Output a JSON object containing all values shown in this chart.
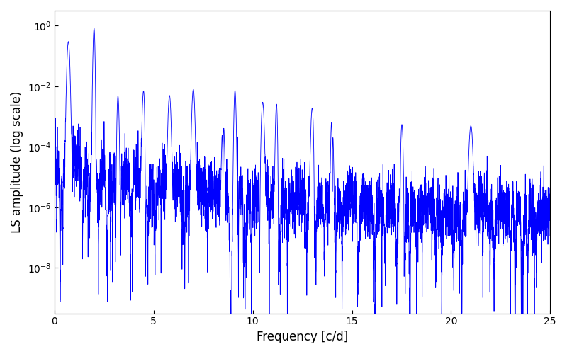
{
  "title": "",
  "xlabel": "Frequency [c/d]",
  "ylabel": "LS amplitude (log scale)",
  "xlim": [
    0,
    25
  ],
  "ylim_log": [
    -9.5,
    0.5
  ],
  "line_color": "#0000ff",
  "line_width": 0.6,
  "yscale": "log",
  "yticks": [
    1e-08,
    1e-06,
    0.0001,
    0.01,
    1.0
  ],
  "xticks": [
    0,
    5,
    10,
    15,
    20,
    25
  ],
  "num_points": 5000,
  "freq_max": 25.0,
  "main_peak_freq": 2.0,
  "main_peak_amp": 1.0,
  "second_peak_amp": 0.3,
  "second_peak_freq": 0.7,
  "noise_floor_base": 0.0001,
  "background_color": "#ffffff",
  "figsize": [
    8.0,
    5.0
  ],
  "dpi": 100
}
